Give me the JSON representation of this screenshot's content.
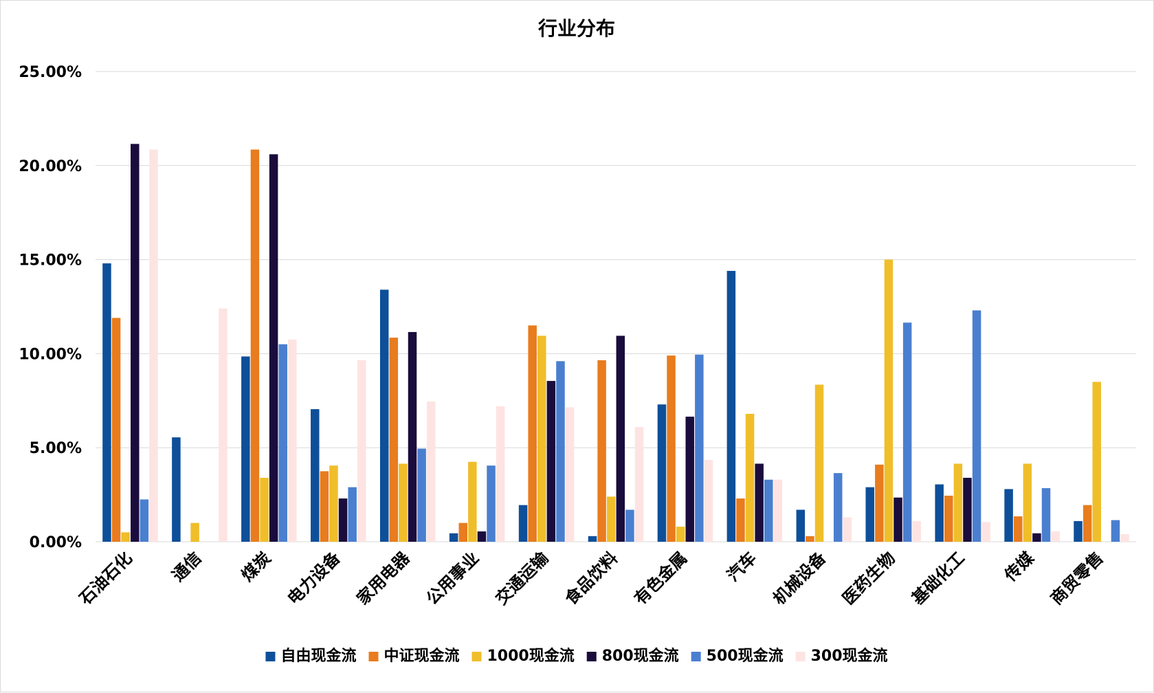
{
  "chart_data": {
    "type": "bar",
    "title": "行业分布",
    "xlabel": "",
    "ylabel": "",
    "ylim": [
      0,
      0.25
    ],
    "y_ticks": [
      0,
      0.05,
      0.1,
      0.15,
      0.2,
      0.25
    ],
    "y_tick_labels": [
      "0.00%",
      "5.00%",
      "10.00%",
      "15.00%",
      "20.00%",
      "25.00%"
    ],
    "grid": true,
    "legend_position": "bottom",
    "categories": [
      "石油石化",
      "通信",
      "煤炭",
      "电力设备",
      "家用电器",
      "公用事业",
      "交通运输",
      "食品饮料",
      "有色金属",
      "汽车",
      "机械设备",
      "医药生物",
      "基础化工",
      "传媒",
      "商贸零售"
    ],
    "series": [
      {
        "name": "自由现金流",
        "color": "#0e4f9a",
        "values": [
          0.148,
          0.0555,
          0.0985,
          0.0705,
          0.134,
          0.0045,
          0.0195,
          0.003,
          0.073,
          0.144,
          0.017,
          0.029,
          0.0305,
          0.028,
          0.011
        ]
      },
      {
        "name": "中证现金流",
        "color": "#e87c1e",
        "values": [
          0.119,
          0,
          0.2085,
          0.0375,
          0.1085,
          0.01,
          0.115,
          0.0965,
          0.099,
          0.023,
          0.003,
          0.041,
          0.0245,
          0.0135,
          0.0195
        ]
      },
      {
        "name": "1000现金流",
        "color": "#f0be2a",
        "values": [
          0.005,
          0.01,
          0.034,
          0.0405,
          0.0415,
          0.0425,
          0.1095,
          0.024,
          0.008,
          0.068,
          0.0835,
          0.15,
          0.0415,
          0.0415,
          0.085
        ]
      },
      {
        "name": "800现金流",
        "color": "#1a0c3c",
        "values": [
          0.2115,
          0,
          0.206,
          0.023,
          0.1115,
          0.0055,
          0.0855,
          0.1095,
          0.0665,
          0.0415,
          0,
          0.0235,
          0.034,
          0.0045,
          0
        ]
      },
      {
        "name": "500现金流",
        "color": "#4a7fd0",
        "values": [
          0.0225,
          0,
          0.105,
          0.029,
          0.0495,
          0.0405,
          0.096,
          0.017,
          0.0995,
          0.033,
          0.0365,
          0.1165,
          0.123,
          0.0285,
          0.0115
        ]
      },
      {
        "name": "300现金流",
        "color": "#fde4e2",
        "values": [
          0.2085,
          0.124,
          0.1075,
          0.0965,
          0.0745,
          0.072,
          0.0715,
          0.061,
          0.0435,
          0.033,
          0.013,
          0.011,
          0.0105,
          0.0055,
          0.004
        ]
      }
    ]
  }
}
